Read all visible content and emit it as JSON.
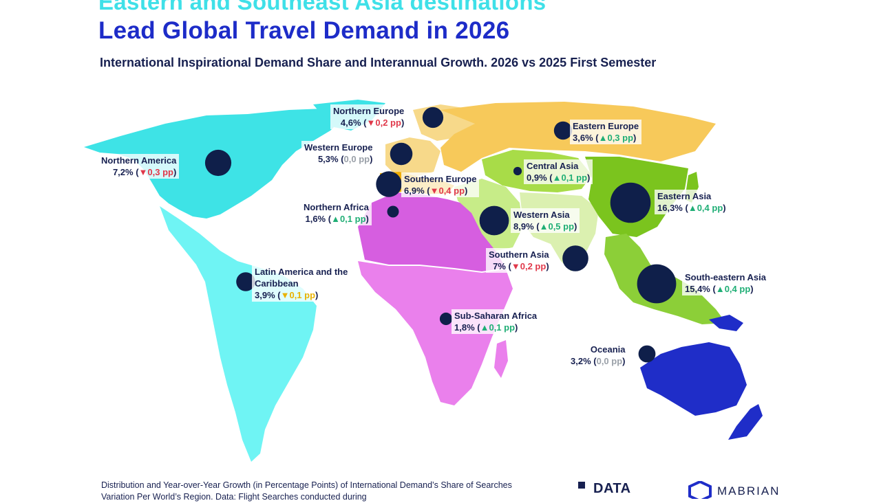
{
  "title_line1": "Eastern and Southeast Asia destinations",
  "title_line2": "Lead Global Travel Demand in 2026",
  "subtitle": "International Inspirational Demand Share and Interannual Growth. 2026 vs 2025 First Semester",
  "colors": {
    "northern_america": "#3ee3e6",
    "latin_america": "#6ff4f4",
    "africa_north": "#d65ee0",
    "sub_saharan": "#ea80ec",
    "eastern_europe": "#f7c95a",
    "western_europe": "#f7d98a",
    "southern_europe": "#f0ad00",
    "central_asia": "#a8dc48",
    "eastern_asia": "#7bc41e",
    "western_asia": "#c7ec88",
    "southern_asia": "#dbf0b0",
    "southeast_asia": "#8ccf38",
    "oceania": "#1f2dc8",
    "bubble": "#0f1f4a",
    "up": "#1fae75",
    "down": "#e0384a",
    "flat": "#9aa0a8"
  },
  "regions": [
    {
      "name": "Northern Europe",
      "share": "4,6%",
      "arrow": "▼",
      "change": "0,2 pp",
      "trend": "down",
      "share_pct": 4.6
    },
    {
      "name": "Eastern Europe",
      "share": "3,6%",
      "arrow": "▲",
      "change": "0,3 pp",
      "trend": "up",
      "share_pct": 3.6
    },
    {
      "name": "Western Europe",
      "share": "5,3%",
      "arrow": "",
      "change": "0,0 pp",
      "trend": "flat",
      "share_pct": 5.3
    },
    {
      "name": "Northern America",
      "share": "7,2%",
      "arrow": "▼",
      "change": "0,3 pp",
      "trend": "down",
      "share_pct": 7.2
    },
    {
      "name": "Central Asia",
      "share": "0,9%",
      "arrow": "▲",
      "change": "0,1 pp",
      "trend": "up",
      "share_pct": 0.9
    },
    {
      "name": "Southern Europe",
      "share": "6,9%",
      "arrow": "▼",
      "change": "0,4 pp",
      "trend": "down",
      "share_pct": 6.9
    },
    {
      "name": "Eastern Asia",
      "share": "16,3%",
      "arrow": "▲",
      "change": "0,4 pp",
      "trend": "up",
      "share_pct": 16.3
    },
    {
      "name": "Northern Africa",
      "share": "1,6%",
      "arrow": "▲",
      "change": "0,1 pp",
      "trend": "up",
      "share_pct": 1.6
    },
    {
      "name": "Western Asia",
      "share": "8,9%",
      "arrow": "▲",
      "change": "0,5 pp",
      "trend": "up",
      "share_pct": 8.9
    },
    {
      "name": "Southern Asia",
      "share": "7%",
      "arrow": "▼",
      "change": "0,2 pp",
      "trend": "down",
      "share_pct": 7.0
    },
    {
      "name": "Latin America and the Caribbean",
      "share": "3,9%",
      "arrow": "▼",
      "change": "0,1 pp",
      "trend": "amber",
      "share_pct": 3.9
    },
    {
      "name": "South-eastern Asia",
      "share": "15,4%",
      "arrow": "▲",
      "change": "0,4 pp",
      "trend": "up",
      "share_pct": 15.4
    },
    {
      "name": "Sub-Saharan Africa",
      "share": "1,8%",
      "arrow": "▲",
      "change": "0,1 pp",
      "trend": "up",
      "share_pct": 1.8
    },
    {
      "name": "Oceania",
      "share": "3,2%",
      "arrow": "",
      "change": "0,0 pp",
      "trend": "flat",
      "share_pct": 3.2
    }
  ],
  "footer": "Distribution and Year-over-Year Growth (in Percentage Points) of International Demand’s Share of Searches Variation Per World’s Region. Data: Flight Searches conducted during",
  "logo_data": "DATA",
  "logo_mabrian": "MABRIAN"
}
